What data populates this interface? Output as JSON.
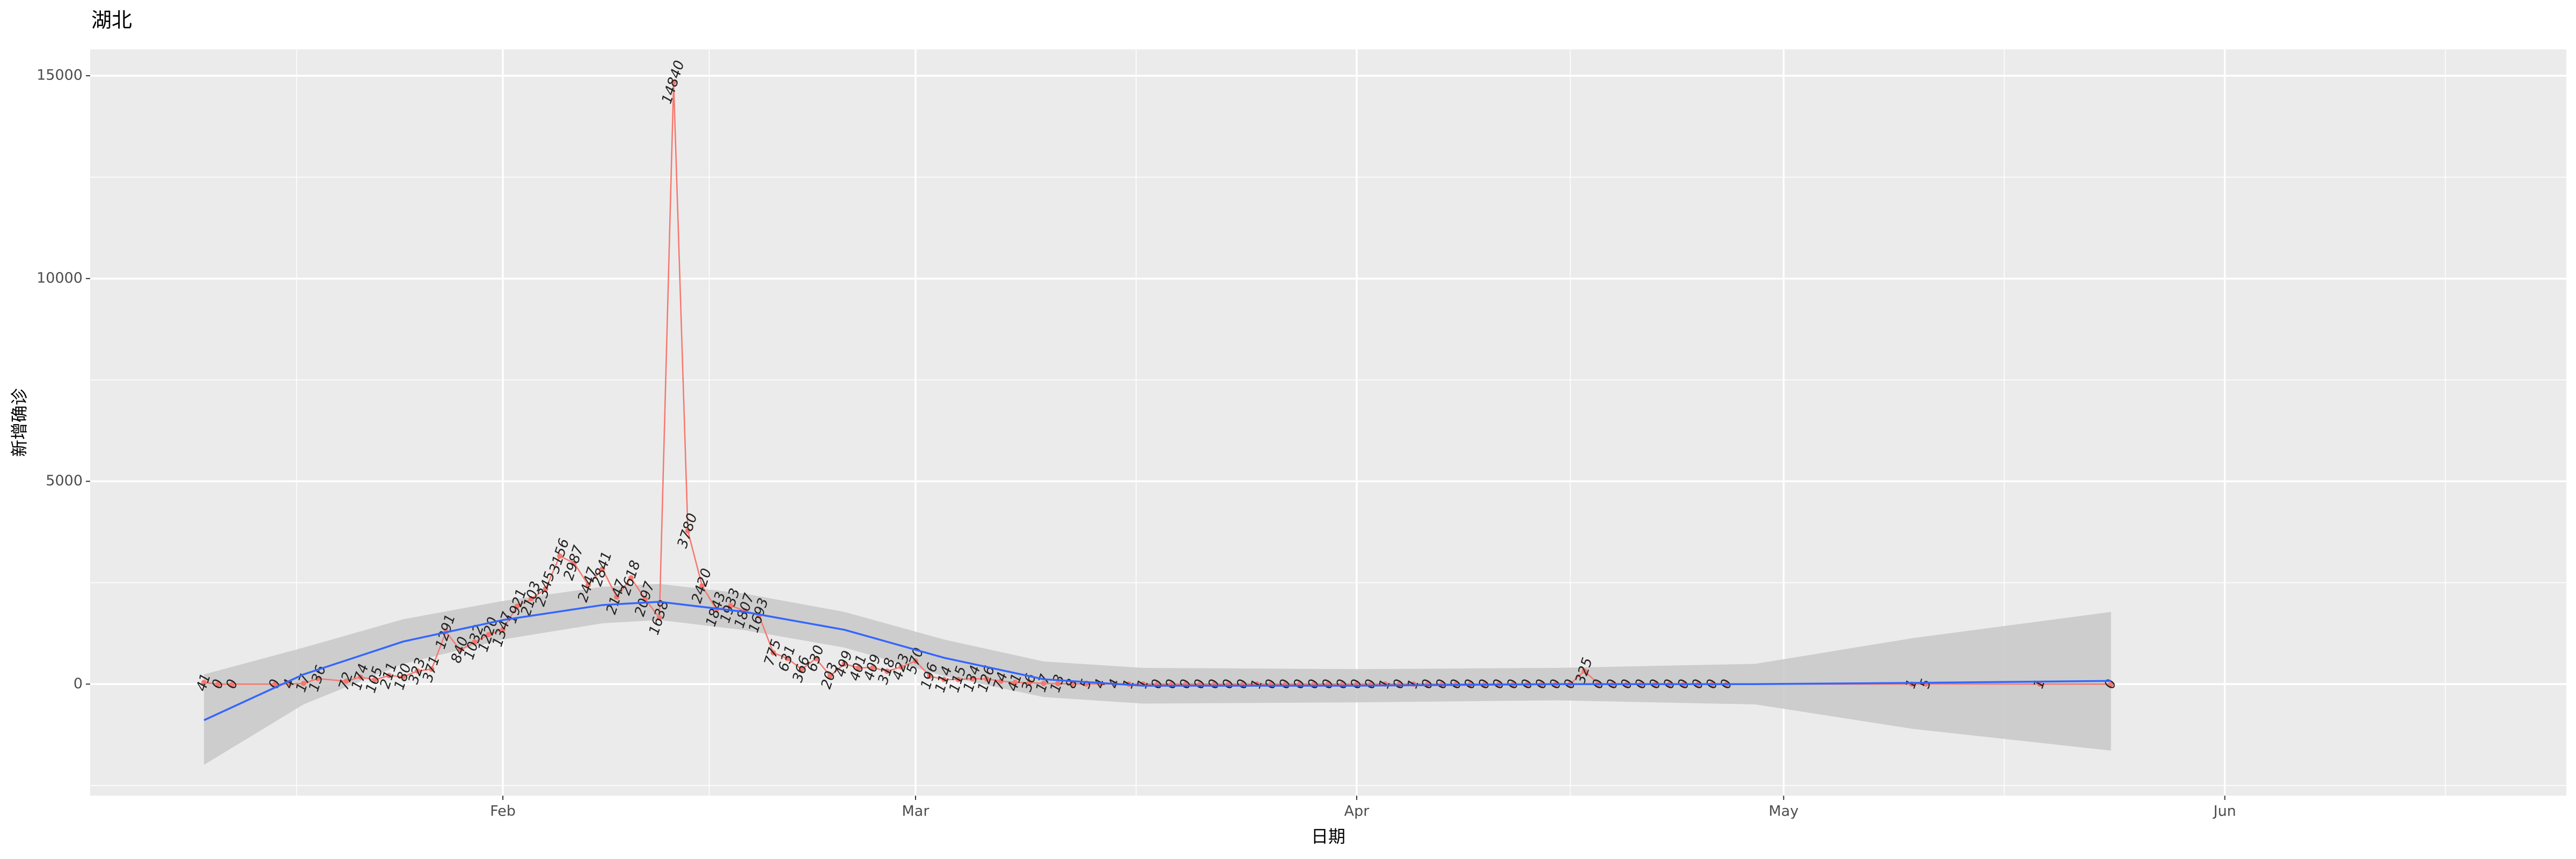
{
  "chart_data": {
    "type": "line",
    "title": "湖北",
    "x_label": "日期",
    "y_label": "新增确诊",
    "grid": true,
    "xlim": [
      "01-03",
      "06-25"
    ],
    "xticks": [
      {
        "value": "02-01",
        "label": "Feb"
      },
      {
        "value": "03-01",
        "label": "Mar"
      },
      {
        "value": "04-01",
        "label": "Apr"
      },
      {
        "value": "05-01",
        "label": "May"
      },
      {
        "value": "06-01",
        "label": "Jun"
      }
    ],
    "ylim": [
      -2750,
      15650
    ],
    "yticks": [
      0,
      5000,
      10000,
      15000
    ],
    "x": [
      "01-11",
      "01-12",
      "01-13",
      "01-16",
      "01-17",
      "01-18",
      "01-19",
      "01-21",
      "01-22",
      "01-23",
      "01-24",
      "01-25",
      "01-26",
      "01-27",
      "01-28",
      "01-29",
      "01-30",
      "01-31",
      "02-01",
      "02-02",
      "02-03",
      "02-04",
      "02-05",
      "02-06",
      "02-07",
      "02-08",
      "02-09",
      "02-10",
      "02-11",
      "02-12",
      "02-13",
      "02-14",
      "02-15",
      "02-16",
      "02-17",
      "02-18",
      "02-19",
      "02-20",
      "02-21",
      "02-22",
      "02-23",
      "02-24",
      "02-25",
      "02-26",
      "02-27",
      "02-28",
      "02-29",
      "03-01",
      "03-02",
      "03-03",
      "03-04",
      "03-05",
      "03-06",
      "03-07",
      "03-08",
      "03-09",
      "03-10",
      "03-11",
      "03-12",
      "03-13",
      "03-14",
      "03-15",
      "03-16",
      "03-17",
      "03-18",
      "03-19",
      "03-20",
      "03-21",
      "03-22",
      "03-23",
      "03-24",
      "03-25",
      "03-26",
      "03-27",
      "03-28",
      "03-29",
      "03-30",
      "03-31",
      "04-01",
      "04-02",
      "04-03",
      "04-04",
      "04-05",
      "04-06",
      "04-07",
      "04-08",
      "04-09",
      "04-10",
      "04-11",
      "04-12",
      "04-13",
      "04-14",
      "04-15",
      "04-16",
      "04-17",
      "04-18",
      "04-19",
      "04-20",
      "04-21",
      "04-22",
      "04-23",
      "04-24",
      "04-25",
      "04-26",
      "04-27",
      "05-10",
      "05-11",
      "05-19",
      "05-24"
    ],
    "series": [
      {
        "color": "#f8766d",
        "values": [
          41,
          0,
          0,
          0,
          4,
          17,
          136,
          72,
          174,
          105,
          211,
          180,
          323,
          371,
          1291,
          840,
          1032,
          1220,
          1347,
          1921,
          2103,
          2345,
          3156,
          2987,
          2447,
          2841,
          2147,
          2618,
          2097,
          1638,
          14840,
          3780,
          2420,
          1843,
          1933,
          1807,
          1693,
          775,
          631,
          366,
          630,
          203,
          499,
          401,
          409,
          318,
          423,
          570,
          196,
          114,
          115,
          134,
          126,
          74,
          41,
          36,
          17,
          13,
          8,
          5,
          4,
          4,
          1,
          1,
          0,
          0,
          0,
          0,
          0,
          0,
          0,
          1,
          0,
          0,
          0,
          0,
          0,
          0,
          0,
          0,
          1,
          0,
          1,
          0,
          0,
          0,
          0,
          0,
          0,
          0,
          0,
          0,
          0,
          0,
          325,
          0,
          0,
          0,
          0,
          0,
          0,
          0,
          0,
          0,
          0,
          1,
          5,
          1,
          0
        ]
      }
    ],
    "smooth": {
      "color": "#3366ff",
      "band_color": "#c8c8c8",
      "x": [
        "01-11",
        "01-18",
        "01-25",
        "02-01",
        "02-08",
        "02-12",
        "02-18",
        "02-25",
        "03-03",
        "03-10",
        "03-17",
        "04-01",
        "04-15",
        "04-29",
        "05-10",
        "05-24"
      ],
      "values": [
        -890,
        240,
        1050,
        1580,
        1950,
        2030,
        1780,
        1340,
        650,
        120,
        -40,
        -40,
        0,
        0,
        30,
        80
      ],
      "lower": [
        -1990,
        -500,
        500,
        1100,
        1500,
        1580,
        1330,
        900,
        200,
        -320,
        -480,
        -450,
        -400,
        -500,
        -1100,
        -1640
      ],
      "upper": [
        240,
        900,
        1600,
        2050,
        2400,
        2470,
        2230,
        1780,
        1100,
        560,
        400,
        370,
        400,
        500,
        1130,
        1780
      ]
    }
  }
}
